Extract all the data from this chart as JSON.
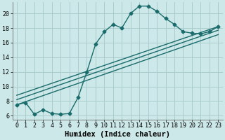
{
  "xlabel": "Humidex (Indice chaleur)",
  "background_color": "#cce8e8",
  "grid_color": "#aacccc",
  "line_color": "#1a6b6b",
  "xlim": [
    -0.5,
    23.5
  ],
  "ylim": [
    5.5,
    21.5
  ],
  "xticks": [
    0,
    1,
    2,
    3,
    4,
    5,
    6,
    7,
    8,
    9,
    10,
    11,
    12,
    13,
    14,
    15,
    16,
    17,
    18,
    19,
    20,
    21,
    22,
    23
  ],
  "yticks": [
    6,
    8,
    10,
    12,
    14,
    16,
    18,
    20
  ],
  "curve1_x": [
    0,
    1,
    2,
    3,
    4,
    5,
    6,
    7,
    8,
    9,
    10,
    11,
    12,
    13,
    14,
    15,
    16,
    17,
    18,
    19,
    20,
    21,
    22,
    23
  ],
  "curve1_y": [
    7.5,
    7.8,
    6.2,
    6.8,
    6.3,
    6.2,
    6.3,
    8.5,
    12.0,
    15.8,
    17.5,
    18.5,
    18.0,
    20.0,
    21.0,
    21.0,
    20.3,
    19.3,
    18.5,
    17.5,
    17.3,
    17.2,
    17.5,
    18.2
  ],
  "line1_x": [
    0,
    23
  ],
  "line1_y": [
    8.8,
    18.2
  ],
  "line2_x": [
    0,
    23
  ],
  "line2_y": [
    8.2,
    17.7
  ],
  "line3_x": [
    0,
    23
  ],
  "line3_y": [
    7.5,
    17.1
  ],
  "marker": "D",
  "markersize": 2.5,
  "linewidth": 1.0,
  "tick_fontsize": 6,
  "label_fontsize": 7.5
}
